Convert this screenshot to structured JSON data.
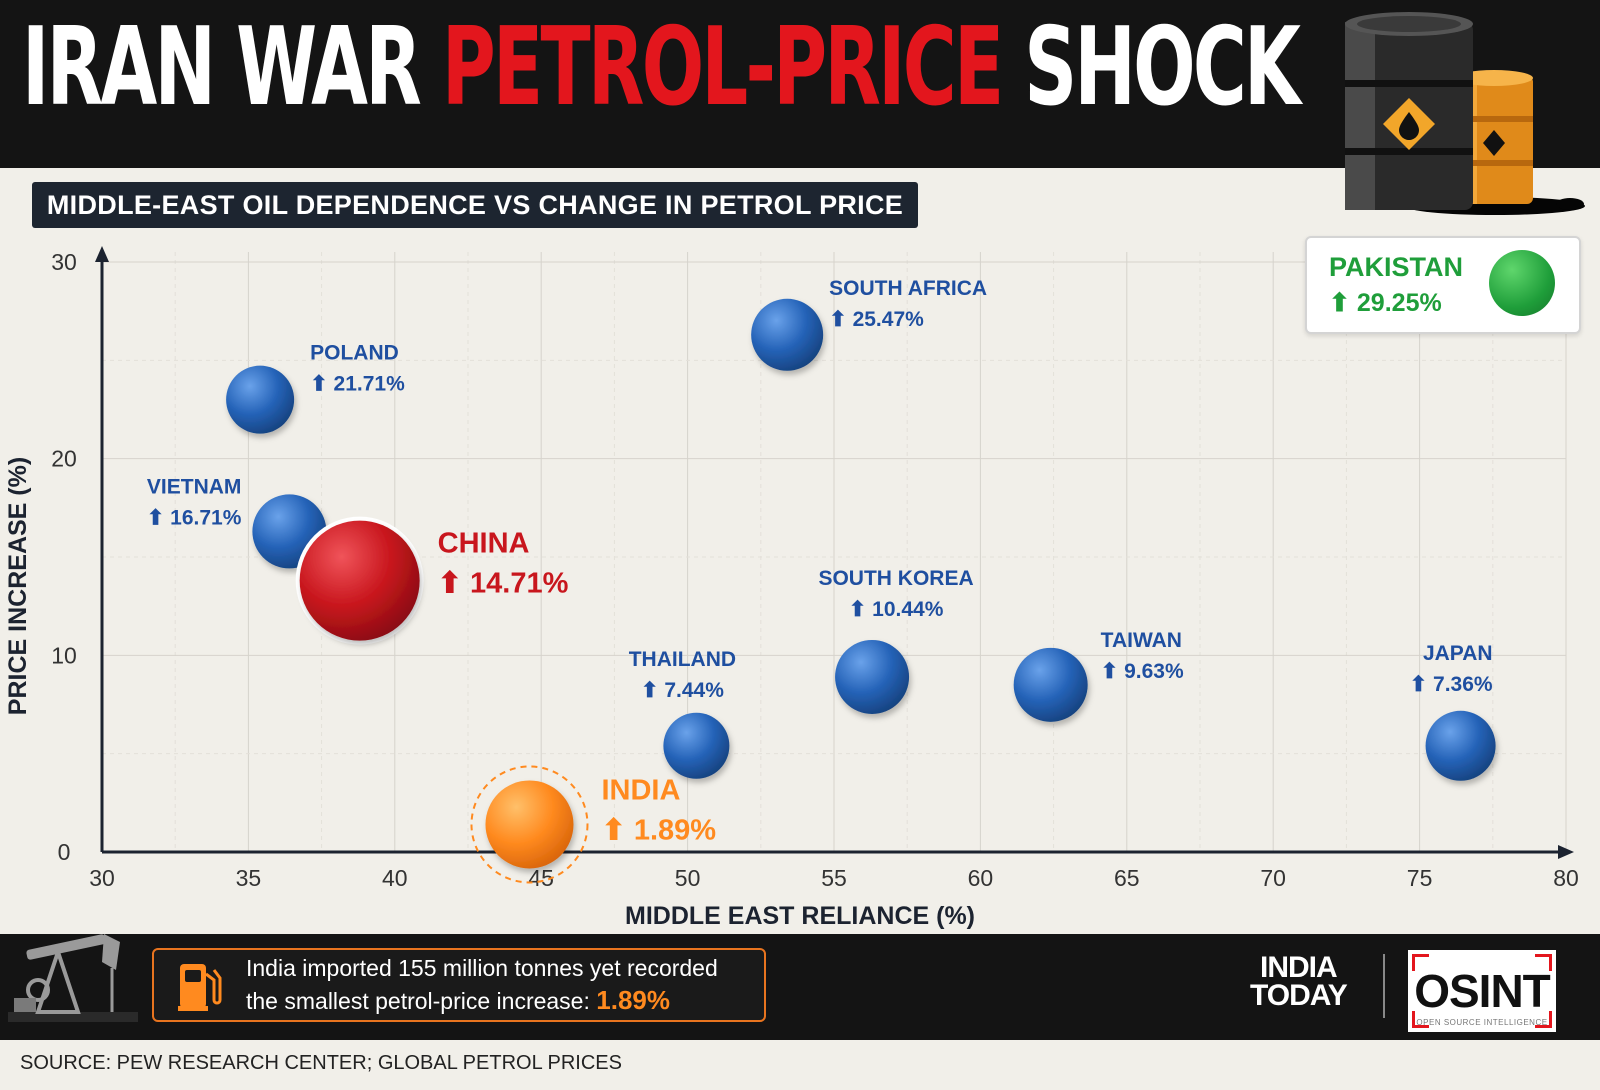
{
  "header": {
    "title_part1": "IRAN WAR",
    "title_part2": "PETROL-PRICE",
    "title_part3": "SHOCK"
  },
  "subtitle": "MIDDLE-EAST OIL DEPENDENCE VS CHANGE IN PETROL PRICE",
  "chart_data": {
    "type": "scatter",
    "title": "MIDDLE-EAST OIL DEPENDENCE VS CHANGE IN PETROL PRICE",
    "xlabel": "MIDDLE EAST RELIANCE (%)",
    "ylabel": "PRICE INCREASE (%)",
    "xlim": [
      30,
      80
    ],
    "ylim": [
      0,
      30
    ],
    "x_ticks": [
      30,
      35,
      40,
      45,
      50,
      55,
      60,
      65,
      70,
      75,
      80
    ],
    "y_ticks": [
      0,
      10,
      20,
      30
    ],
    "grid": true,
    "points": [
      {
        "name": "POLAND",
        "label": "21.71%",
        "x": 35.4,
        "y": 23.0,
        "value": 21.71,
        "color": "#2563b8",
        "highlight": false
      },
      {
        "name": "SOUTH AFRICA",
        "label": "25.47%",
        "x": 53.4,
        "y": 26.3,
        "value": 25.47,
        "color": "#2563b8",
        "highlight": false
      },
      {
        "name": "VIETNAM",
        "label": "16.71%",
        "x": 36.4,
        "y": 16.3,
        "value": 16.71,
        "color": "#2563b8",
        "highlight": false
      },
      {
        "name": "CHINA",
        "label": "14.71%",
        "x": 38.8,
        "y": 13.8,
        "value": 14.71,
        "color": "#c8161d",
        "highlight": true
      },
      {
        "name": "THAILAND",
        "label": "7.44%",
        "x": 50.3,
        "y": 5.4,
        "value": 7.44,
        "color": "#2563b8",
        "highlight": false
      },
      {
        "name": "SOUTH KOREA",
        "label": "10.44%",
        "x": 56.3,
        "y": 8.9,
        "value": 10.44,
        "color": "#2563b8",
        "highlight": false
      },
      {
        "name": "TAIWAN",
        "label": "9.63%",
        "x": 62.4,
        "y": 8.5,
        "value": 9.63,
        "color": "#2563b8",
        "highlight": false
      },
      {
        "name": "JAPAN",
        "label": "7.36%",
        "x": 76.4,
        "y": 5.4,
        "value": 7.36,
        "color": "#2563b8",
        "highlight": false
      },
      {
        "name": "INDIA",
        "label": "1.89%",
        "x": 44.6,
        "y": 1.4,
        "value": 1.89,
        "color": "#ff8a1f",
        "highlight": true
      }
    ],
    "outlier": {
      "name": "PAKISTAN",
      "label": "29.25%",
      "value": 29.25,
      "color": "#1f9e3a"
    }
  },
  "callout": {
    "line1": "India imported 155 million tonnes yet recorded",
    "line2": "the smallest petrol-price increase: ",
    "value": "1.89%"
  },
  "logos": {
    "india_today_line1": "INDIA",
    "india_today_line2": "TODAY",
    "osint": "OSINT",
    "osint_sub": "OPEN SOURCE INTELLIGENCE"
  },
  "source": "SOURCE: PEW RESEARCH CENTER; GLOBAL PETROL PRICES"
}
